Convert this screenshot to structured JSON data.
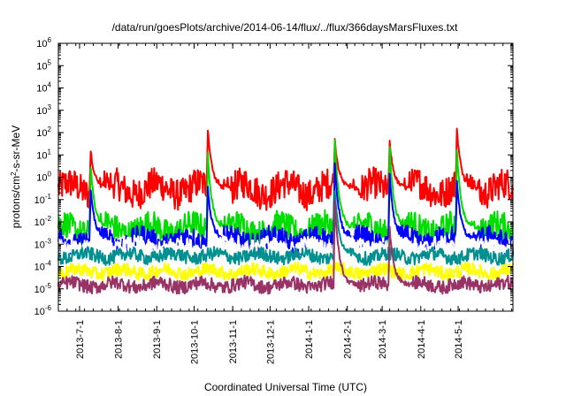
{
  "chart_data": {
    "type": "line",
    "title": "/data/run/goesPlots/archive/2014-06-14/flux/../flux/366daysMarsFluxes.txt",
    "xlabel": "Coordinated Universal Time (UTC)",
    "ylabel": {
      "pre": "protons/cm",
      "sup": "2",
      "post": "-s-sr-MeV"
    },
    "yscale": "log",
    "ylim_exp": [
      -6,
      6
    ],
    "y_ticks": [
      {
        "base": "10",
        "exp": "-6"
      },
      {
        "base": "10",
        "exp": "-5"
      },
      {
        "base": "10",
        "exp": "-4"
      },
      {
        "base": "10",
        "exp": "-3"
      },
      {
        "base": "10",
        "exp": "-2"
      },
      {
        "base": "10",
        "exp": "-1"
      },
      {
        "base": "10",
        "exp": "0"
      },
      {
        "base": "10",
        "exp": "1"
      },
      {
        "base": "10",
        "exp": "2"
      },
      {
        "base": "10",
        "exp": "3"
      },
      {
        "base": "10",
        "exp": "4"
      },
      {
        "base": "10",
        "exp": "5"
      },
      {
        "base": "10",
        "exp": "6"
      }
    ],
    "xlim": [
      "2013-06-14",
      "2014-06-14"
    ],
    "x_ticks": [
      {
        "date": "2013-07-01",
        "label": "2013-7-1"
      },
      {
        "date": "2013-08-01",
        "label": "2013-8-1"
      },
      {
        "date": "2013-09-01",
        "label": "2013-9-1"
      },
      {
        "date": "2013-10-01",
        "label": "2013-10-1"
      },
      {
        "date": "2013-11-01",
        "label": "2013-11-1"
      },
      {
        "date": "2013-12-01",
        "label": "2013-12-1"
      },
      {
        "date": "2014-01-01",
        "label": "2014-1-1"
      },
      {
        "date": "2014-02-01",
        "label": "2014-2-1"
      },
      {
        "date": "2014-03-01",
        "label": "2014-3-1"
      },
      {
        "date": "2014-04-01",
        "label": "2014-4-1"
      },
      {
        "date": "2014-05-01",
        "label": "2014-5-1"
      }
    ],
    "grid": false,
    "legend": "none",
    "series": [
      {
        "color": "#ff0000",
        "base": 0.3,
        "noise": 1.4,
        "events": [
          [
            26,
            15
          ],
          [
            120,
            150
          ],
          [
            222,
            50
          ],
          [
            266,
            35
          ],
          [
            320,
            150
          ]
        ]
      },
      {
        "color": "#00dd00",
        "base": 0.005,
        "noise": 1.2,
        "events": [
          [
            26,
            3
          ],
          [
            120,
            10
          ],
          [
            222,
            40
          ],
          [
            266,
            20
          ],
          [
            320,
            15
          ]
        ]
      },
      {
        "color": "#0000ff",
        "base": 0.0015,
        "noise": 1.0,
        "events": [
          [
            26,
            0.3
          ],
          [
            120,
            0.3
          ],
          [
            222,
            5
          ],
          [
            266,
            1.5
          ],
          [
            320,
            0.6
          ]
        ]
      },
      {
        "color": "#ffffff",
        "base": 0.0008,
        "noise": 0.7,
        "events": []
      },
      {
        "color": "#009090",
        "base": 0.0003,
        "noise": 0.6,
        "events": [
          [
            222,
            0.3
          ]
        ]
      },
      {
        "color": "#ffff00",
        "base": 6e-05,
        "noise": 0.6,
        "events": []
      },
      {
        "color": "#993366",
        "base": 1.5e-05,
        "noise": 0.6,
        "events": [
          [
            222,
            0.1
          ],
          [
            266,
            0.005
          ]
        ]
      }
    ]
  }
}
